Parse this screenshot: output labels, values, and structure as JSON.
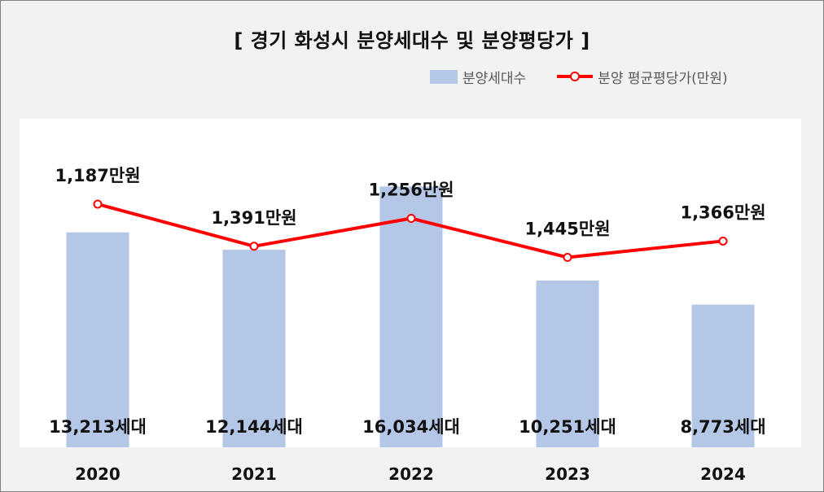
{
  "chart_data": {
    "type": "bar",
    "title": "[ 경기 화성시 분양세대수 및 분양평당가 ]",
    "categories": [
      "2020",
      "2021",
      "2022",
      "2023",
      "2024"
    ],
    "series": [
      {
        "name": "분양세대수",
        "type": "bar",
        "values": [
          13213,
          12144,
          16034,
          10251,
          8773
        ],
        "labels": [
          "13,213세대",
          "12,144세대",
          "16,034세대",
          "10,251세대",
          "8,773세대"
        ],
        "color": "#b4c7e7"
      },
      {
        "name": "분양 평균평당가(만원)",
        "type": "line",
        "values": [
          1187,
          1391,
          1256,
          1445,
          1366
        ],
        "labels": [
          "1,187만원",
          "1,391만원",
          "1,256만원",
          "1,445만원",
          "1,366만원"
        ],
        "color": "#ff0000"
      }
    ],
    "grid": false,
    "legend": "top-right"
  }
}
